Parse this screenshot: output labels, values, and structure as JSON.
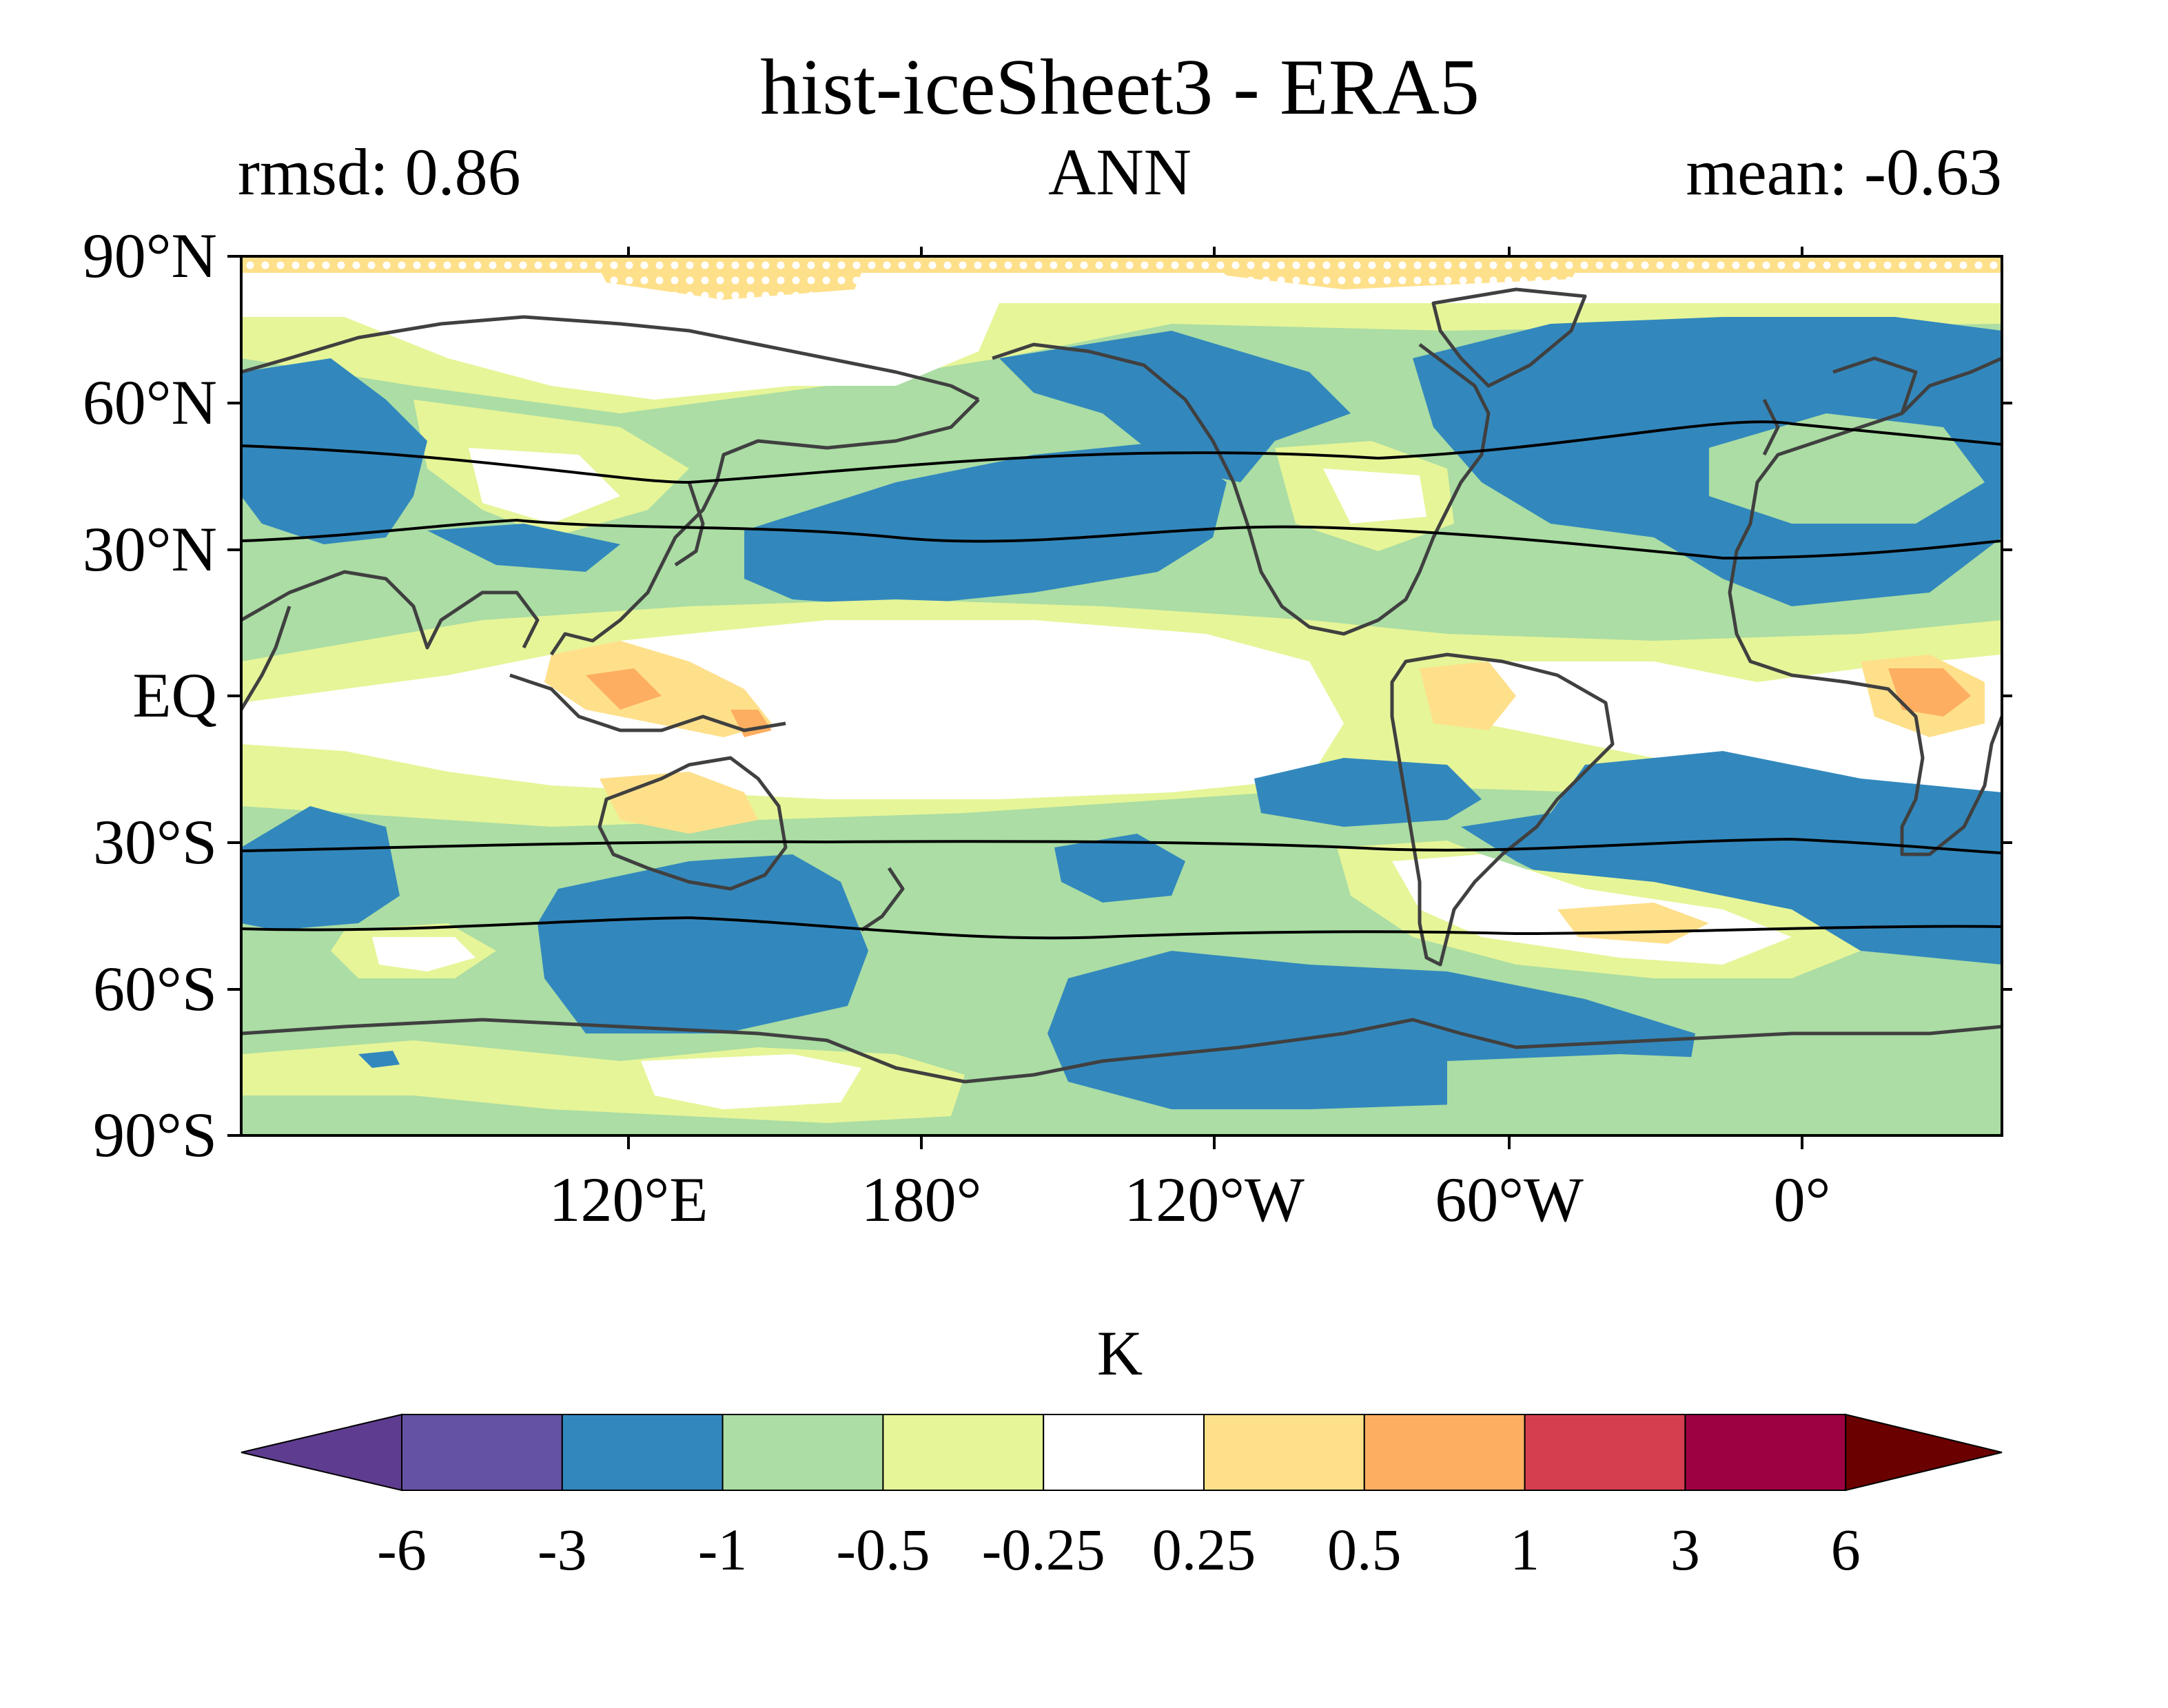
{
  "title": "hist-iceSheet3 - ERA5",
  "stats": {
    "left": "rmsd: 0.86",
    "center": "ANN",
    "right": "mean: -0.63"
  },
  "map": {
    "projection": "cylindrical equidistant",
    "central_longitude": "Atlantic-centred, lon 60°E to 60°E",
    "lat_ticks": [
      "90°N",
      "60°N",
      "30°N",
      "EQ",
      "30°S",
      "60°S",
      "90°S"
    ],
    "lon_ticks": [
      "120°E",
      "180°",
      "120°W",
      "60°W",
      "0°"
    ],
    "stippling": "white dots over significant region near north pole",
    "contours": "black jet-position lines at ~30-50°N and ~30-50°S"
  },
  "colorbar": {
    "unit": "K",
    "levels": [
      "-6",
      "-3",
      "-1",
      "-0.5",
      "-0.25",
      "0.25",
      "0.5",
      "1",
      "3",
      "6"
    ],
    "colors": [
      "#5e3c8f",
      "#6452a4",
      "#3288bd",
      "#abdda4",
      "#e6f598",
      "#ffffff",
      "#fee08b",
      "#fdae61",
      "#d53e4f",
      "#9e0142",
      "#6b0000"
    ],
    "extend": "both"
  },
  "chart_data": {
    "type": "heatmap",
    "title": "hist-iceSheet3 - ERA5",
    "rmsd": 0.86,
    "mean": -0.63,
    "season": "ANN",
    "unit": "K",
    "levels": [
      -6,
      -3,
      -1,
      -0.5,
      -0.25,
      0.25,
      0.5,
      1,
      3,
      6
    ],
    "regions": [
      {
        "lat": "45-80N",
        "lon": "60-110E",
        "value_range": "-3 to -1"
      },
      {
        "lat": "20-45N",
        "lon": "160E-110W",
        "value_range": "-3 to -1"
      },
      {
        "lat": "40-75N",
        "lon": "140-100W",
        "value_range": "-3 to -1"
      },
      {
        "lat": "30-75N",
        "lon": "60-0W",
        "value_range": "-3 to -1"
      },
      {
        "lat": "40-70S",
        "lon": "110-170E",
        "value_range": "-3 to -1"
      },
      {
        "lat": "55-80S",
        "lon": "140-70W",
        "value_range": "-3 to -1"
      },
      {
        "lat": "20-40S",
        "lon": "50W-60E",
        "value_range": "-3 to -1"
      },
      {
        "lat": "15S-30N",
        "lon": "150E-90W",
        "value_range": "-0.25 to 0.25"
      },
      {
        "lat": "10S-5N",
        "lon": "100-150E",
        "value_range": "0.25 to 0.5"
      },
      {
        "lat": "0-10N",
        "lon": "20-40E",
        "value_range": "0.5 to 1"
      },
      {
        "lat": "80-90N",
        "lon": "all",
        "value_range": "0.25 to 0.5"
      }
    ]
  }
}
